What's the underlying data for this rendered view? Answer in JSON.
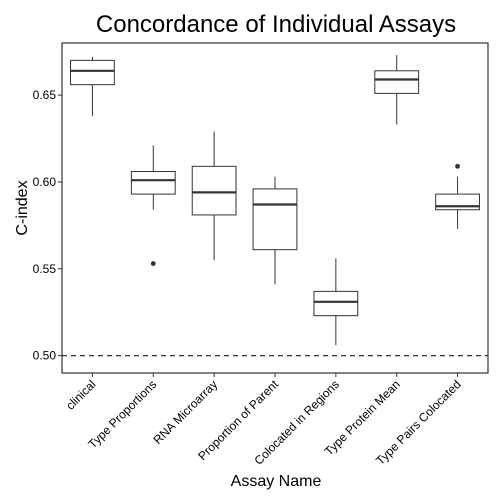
{
  "chart_data": {
    "type": "box",
    "title": "Concordance of Individual Assays",
    "xlabel": "Assay Name",
    "ylabel": "C-index",
    "ylim": [
      0.49,
      0.68
    ],
    "yticks": [
      0.5,
      0.55,
      0.6,
      0.65
    ],
    "ytick_labels": [
      "0.50",
      "0.55",
      "0.60",
      "0.65"
    ],
    "grid": false,
    "reference_line": {
      "y": 0.5,
      "style": "dashed"
    },
    "categories": [
      "clinical",
      "Type Proportions",
      "RNA Microarray",
      "Proportion of Parent",
      "Colocated in Regions",
      "Type Protein Mean",
      "Type Pairs Colocated"
    ],
    "boxes": [
      {
        "category": "clinical",
        "whisker_low": 0.638,
        "q1": 0.656,
        "median": 0.664,
        "q3": 0.67,
        "whisker_high": 0.672,
        "outliers": []
      },
      {
        "category": "Type Proportions",
        "whisker_low": 0.584,
        "q1": 0.593,
        "median": 0.601,
        "q3": 0.606,
        "whisker_high": 0.621,
        "outliers": [
          0.553
        ]
      },
      {
        "category": "RNA Microarray",
        "whisker_low": 0.555,
        "q1": 0.581,
        "median": 0.594,
        "q3": 0.609,
        "whisker_high": 0.629,
        "outliers": []
      },
      {
        "category": "Proportion of Parent",
        "whisker_low": 0.541,
        "q1": 0.561,
        "median": 0.587,
        "q3": 0.596,
        "whisker_high": 0.603,
        "outliers": []
      },
      {
        "category": "Colocated in Regions",
        "whisker_low": 0.506,
        "q1": 0.523,
        "median": 0.531,
        "q3": 0.537,
        "whisker_high": 0.556,
        "outliers": []
      },
      {
        "category": "Type Protein Mean",
        "whisker_low": 0.633,
        "q1": 0.651,
        "median": 0.659,
        "q3": 0.664,
        "whisker_high": 0.673,
        "outliers": []
      },
      {
        "category": "Type Pairs Colocated",
        "whisker_low": 0.573,
        "q1": 0.584,
        "median": 0.586,
        "q3": 0.593,
        "whisker_high": 0.603,
        "outliers": [
          0.609
        ]
      }
    ],
    "colors": {
      "box_fill": "#ffffff",
      "box_stroke": "#333333",
      "background": "#ffffff"
    }
  }
}
